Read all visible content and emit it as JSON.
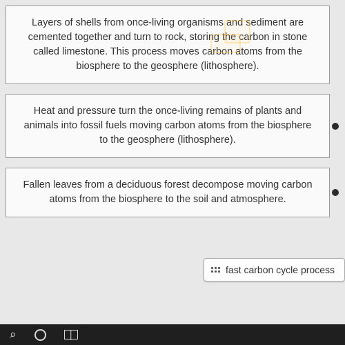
{
  "cards": [
    {
      "text": "Layers of shells from once-living organisms and sediment are cemented together and turn to rock, storing the carbon in stone called limestone.  This process moves carbon atoms from the biosphere to the geosphere (lithosphere).",
      "has_dot": false
    },
    {
      "text": "Heat and pressure turn the once-living remains of plants and animals into fossil fuels moving carbon atoms from the biosphere to the geosphere (lithosphere).",
      "has_dot": true
    },
    {
      "text": "Fallen leaves from a deciduous forest decompose moving carbon atoms from the biosphere to the soil and atmosphere.",
      "has_dot": true
    }
  ],
  "tag_label": "fast carbon cycle process",
  "taskbar": {
    "search_glyph": "⌕"
  }
}
